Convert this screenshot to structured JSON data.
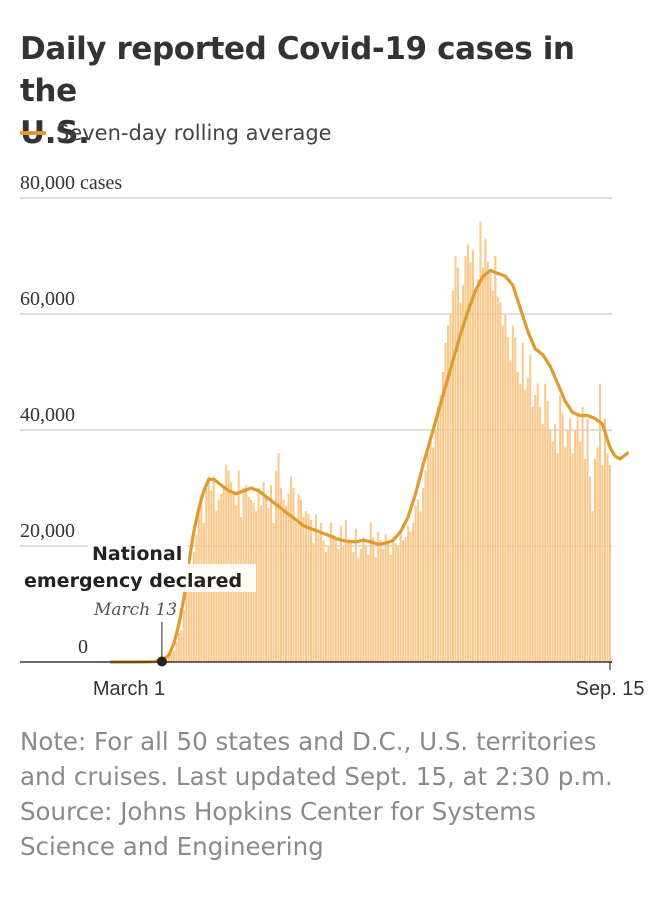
{
  "title_line1": "Daily reported Covid-19 cases in the",
  "title_line2": "U.S.",
  "legend_label": "Seven-day rolling average",
  "note_lines": [
    "Note: For all 50 states and D.C., U.S. territories",
    "and cruises. Last updated Sept. 15, at 2:30 p.m.",
    "Source: Johns Hopkins Center for Systems",
    "Science and Engineering"
  ],
  "colors": {
    "bar": "#f9c88a",
    "line": "#e09a2e",
    "grid": "#cccccc",
    "baseline": "#333333",
    "title": "#333333",
    "note": "#8a8a8a"
  },
  "chart_data": {
    "type": "bar",
    "x_start": "March 1",
    "x_end": "Sep. 15",
    "x_tick_labels": [
      "March 1",
      "Sep. 15"
    ],
    "y_tick_labels": [
      "0",
      "20,000",
      "40,000",
      "60,000",
      "80,000 cases"
    ],
    "ylim": [
      0,
      80000
    ],
    "grid": true,
    "series": [
      {
        "name": "Daily reported cases",
        "kind": "bar",
        "values": [
          0,
          0,
          5,
          10,
          20,
          30,
          50,
          80,
          100,
          150,
          300,
          500,
          900,
          1500,
          2000,
          3500,
          5000,
          5500,
          9000,
          13000,
          13000,
          16000,
          19000,
          22000,
          26000,
          29000,
          24000,
          30000,
          32000,
          29500,
          32000,
          26000,
          28000,
          29000,
          30000,
          34000,
          33000,
          31000,
          29500,
          27000,
          33000,
          25000,
          30000,
          30500,
          28500,
          28000,
          27500,
          26000,
          30000,
          27000,
          31000,
          28500,
          26500,
          30500,
          24000,
          33000,
          36000,
          30000,
          28000,
          27000,
          29000,
          32000,
          30000,
          24000,
          29000,
          28000,
          25000,
          26000,
          25500,
          24500,
          20500,
          25500,
          22000,
          24000,
          21000,
          19000,
          20000,
          24000,
          22000,
          21500,
          19500,
          23500,
          20000,
          24500,
          21000,
          20500,
          19000,
          23000,
          18000,
          19500,
          21500,
          20000,
          18500,
          24000,
          21500,
          18000,
          22500,
          21000,
          19500,
          22000,
          20500,
          18500,
          21500,
          20500,
          20000,
          22500,
          21000,
          21500,
          23500,
          22500,
          24000,
          27000,
          28000,
          26000,
          30000,
          33000,
          36000,
          38000,
          37000,
          40000,
          44000,
          46000,
          50000,
          55000,
          58000,
          60000,
          64000,
          70000,
          68000,
          62000,
          65000,
          70000,
          72000,
          69000,
          71000,
          64000,
          66000,
          76000,
          68000,
          73000,
          69000,
          67000,
          64000,
          70000,
          63000,
          62000,
          58000,
          60000,
          56000,
          52000,
          58000,
          56000,
          50000,
          48000,
          55000,
          47000,
          49000,
          53000,
          44000,
          46000,
          48000,
          44000,
          41000,
          48000,
          45000,
          40000,
          38000,
          41000,
          36000,
          46000,
          43000,
          37000,
          40000,
          42000,
          36000,
          40000,
          43000,
          38000,
          44000,
          35000,
          42000,
          32000,
          26000,
          35000,
          37000,
          48000,
          34000,
          42000,
          36000,
          34000
        ]
      },
      {
        "name": "Seven-day rolling average",
        "kind": "line",
        "points": [
          [
            0,
            0
          ],
          [
            6,
            50
          ],
          [
            10,
            500
          ],
          [
            12,
            1200
          ],
          [
            14,
            3200
          ],
          [
            16,
            6500
          ],
          [
            18,
            11000
          ],
          [
            20,
            17000
          ],
          [
            22,
            22500
          ],
          [
            24,
            26500
          ],
          [
            26,
            29500
          ],
          [
            28,
            31500
          ],
          [
            30,
            31500
          ],
          [
            33,
            30500
          ],
          [
            36,
            29500
          ],
          [
            39,
            29000
          ],
          [
            42,
            29500
          ],
          [
            45,
            30000
          ],
          [
            48,
            29500
          ],
          [
            51,
            28500
          ],
          [
            54,
            27500
          ],
          [
            57,
            26500
          ],
          [
            60,
            25500
          ],
          [
            63,
            24500
          ],
          [
            66,
            23500
          ],
          [
            69,
            23000
          ],
          [
            72,
            22500
          ],
          [
            75,
            22000
          ],
          [
            78,
            21500
          ],
          [
            81,
            21000
          ],
          [
            84,
            20800
          ],
          [
            87,
            20700
          ],
          [
            90,
            21000
          ],
          [
            93,
            20700
          ],
          [
            96,
            20300
          ],
          [
            99,
            20500
          ],
          [
            102,
            21000
          ],
          [
            105,
            22500
          ],
          [
            108,
            25000
          ],
          [
            111,
            29000
          ],
          [
            114,
            34000
          ],
          [
            117,
            38500
          ],
          [
            120,
            43000
          ],
          [
            123,
            47500
          ],
          [
            126,
            52000
          ],
          [
            129,
            56500
          ],
          [
            132,
            60500
          ],
          [
            135,
            64000
          ],
          [
            138,
            66500
          ],
          [
            141,
            67500
          ],
          [
            144,
            67000
          ],
          [
            147,
            66500
          ],
          [
            150,
            65000
          ],
          [
            153,
            61000
          ],
          [
            156,
            57000
          ],
          [
            159,
            54000
          ],
          [
            162,
            53000
          ],
          [
            165,
            51000
          ],
          [
            168,
            48000
          ],
          [
            171,
            45000
          ],
          [
            174,
            43000
          ],
          [
            177,
            42500
          ],
          [
            180,
            42500
          ],
          [
            183,
            42000
          ],
          [
            186,
            41000
          ],
          [
            189,
            37000
          ],
          [
            191,
            35500
          ],
          [
            193,
            35000
          ],
          [
            196,
            36000
          ]
        ]
      }
    ],
    "annotations": [
      {
        "title_line1": "National",
        "title_line2": "emergency declared",
        "date_label": "March 13",
        "x_index": 12,
        "y_value": 0
      }
    ]
  }
}
